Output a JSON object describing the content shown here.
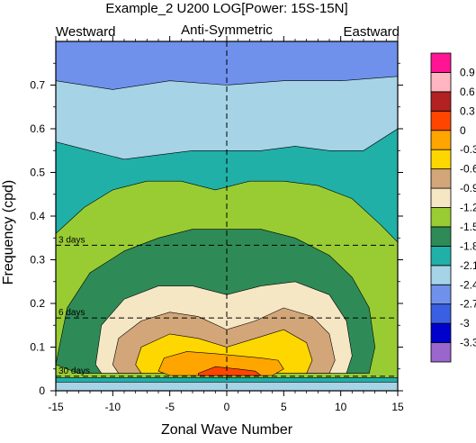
{
  "chart_data": {
    "type": "contour",
    "title": "Example_2 U200 LOG[Power: 15S-15N]",
    "subtitle": "Anti-Symmetric",
    "label_left": "Westward",
    "label_right": "Eastward",
    "xlabel": "Zonal Wave Number",
    "ylabel": "Frequency (cpd)",
    "xlim": [
      -15,
      15
    ],
    "ylim": [
      0,
      0.8
    ],
    "xticks": [
      -15,
      -10,
      -5,
      0,
      5,
      10,
      15
    ],
    "xtick_labels": [
      "-15",
      "-10",
      "-5",
      "0",
      "5",
      "10",
      "15"
    ],
    "yticks": [
      0,
      0.1,
      0.2,
      0.3,
      0.4,
      0.5,
      0.6,
      0.7
    ],
    "ytick_labels": [
      "0",
      "0.1",
      "0.2",
      "0.3",
      "0.4",
      "0.5",
      "0.6",
      "0.7"
    ],
    "period_lines": [
      {
        "freq": 0.0333,
        "label": "30 days"
      },
      {
        "freq": 0.1667,
        "label": "6 days"
      },
      {
        "freq": 0.3333,
        "label": "3 days"
      }
    ],
    "zero_line_x": 0,
    "colorbar": {
      "colors": [
        "#9966cc",
        "#0000cd",
        "#3a5fe3",
        "#6f91ec",
        "#a6d3e6",
        "#20b0a8",
        "#2e8b57",
        "#99cc33",
        "#f5e6c4",
        "#d2a679",
        "#ffd700",
        "#ffa500",
        "#ff4500",
        "#b22222",
        "#ffb6c1",
        "#ff1493"
      ],
      "labels": [
        "-3.3",
        "-3",
        "-2.7",
        "-2.4",
        "-2.1",
        "-1.8",
        "-1.5",
        "-1.2",
        "-0.9",
        "-0.6",
        "-0.3",
        "0",
        "0.3",
        "0.6",
        "0.9"
      ]
    },
    "contour_levels": [
      {
        "level": -2.7,
        "color": "#6f91ec",
        "region": [
          [
            -15,
            0.8
          ],
          [
            15,
            0.8
          ],
          [
            15,
            0
          ],
          [
            -15,
            0
          ]
        ]
      },
      {
        "level": -2.4,
        "color": "#a6d3e6",
        "region": [
          [
            -15,
            0.71
          ],
          [
            -10,
            0.69
          ],
          [
            -5,
            0.71
          ],
          [
            0,
            0.7
          ],
          [
            5,
            0.71
          ],
          [
            10,
            0.71
          ],
          [
            15,
            0.72
          ],
          [
            15,
            0
          ],
          [
            -15,
            0
          ]
        ]
      },
      {
        "level": -2.1,
        "color": "#20b0a8",
        "region": [
          [
            -15,
            0.57
          ],
          [
            -12,
            0.55
          ],
          [
            -9,
            0.53
          ],
          [
            -6,
            0.54
          ],
          [
            -3,
            0.55
          ],
          [
            0,
            0.55
          ],
          [
            3,
            0.55
          ],
          [
            6,
            0.56
          ],
          [
            9,
            0.55
          ],
          [
            12,
            0.55
          ],
          [
            15,
            0.6
          ],
          [
            15,
            0.02
          ],
          [
            -15,
            0.02
          ]
        ]
      },
      {
        "level": -1.8,
        "color": "#99cc33",
        "region": [
          [
            -15,
            0.36
          ],
          [
            -12.5,
            0.42
          ],
          [
            -10,
            0.46
          ],
          [
            -7,
            0.48
          ],
          [
            -4,
            0.48
          ],
          [
            -1,
            0.46
          ],
          [
            2,
            0.48
          ],
          [
            5,
            0.48
          ],
          [
            8,
            0.47
          ],
          [
            11,
            0.44
          ],
          [
            13.5,
            0.38
          ],
          [
            15,
            0.34
          ],
          [
            15,
            0.03
          ],
          [
            -15,
            0.03
          ]
        ]
      },
      {
        "level": -1.5,
        "color": "#2e8b57",
        "region": [
          [
            -15,
            0.06
          ],
          [
            -14,
            0.19
          ],
          [
            -12,
            0.27
          ],
          [
            -9,
            0.32
          ],
          [
            -6,
            0.35
          ],
          [
            -3,
            0.37
          ],
          [
            0,
            0.37
          ],
          [
            3,
            0.37
          ],
          [
            6,
            0.35
          ],
          [
            9,
            0.31
          ],
          [
            11,
            0.26
          ],
          [
            12.5,
            0.19
          ],
          [
            13,
            0.1
          ],
          [
            12.5,
            0.04
          ],
          [
            -13,
            0.04
          ]
        ]
      },
      {
        "level": -1.2,
        "color": "#f5e6c4",
        "region": [
          [
            -11.5,
            0.06
          ],
          [
            -11,
            0.15
          ],
          [
            -9,
            0.21
          ],
          [
            -6,
            0.24
          ],
          [
            -3,
            0.24
          ],
          [
            0,
            0.22
          ],
          [
            3,
            0.24
          ],
          [
            6,
            0.25
          ],
          [
            9,
            0.22
          ],
          [
            10.5,
            0.16
          ],
          [
            11,
            0.08
          ],
          [
            10.5,
            0.04
          ],
          [
            -11,
            0.04
          ]
        ]
      },
      {
        "level": -0.9,
        "color": "#d2a679",
        "region": [
          [
            -10,
            0.06
          ],
          [
            -9.5,
            0.12
          ],
          [
            -7.5,
            0.16
          ],
          [
            -5,
            0.18
          ],
          [
            -2.5,
            0.17
          ],
          [
            0,
            0.14
          ],
          [
            2.5,
            0.16
          ],
          [
            5,
            0.19
          ],
          [
            7.5,
            0.17
          ],
          [
            9,
            0.13
          ],
          [
            9.5,
            0.07
          ],
          [
            9,
            0.04
          ],
          [
            -9.5,
            0.04
          ]
        ]
      },
      {
        "level": -0.6,
        "color": "#ffd700",
        "region": [
          [
            -8,
            0.06
          ],
          [
            -7.5,
            0.1
          ],
          [
            -5,
            0.13
          ],
          [
            -2.5,
            0.12
          ],
          [
            0,
            0.1
          ],
          [
            2.5,
            0.12
          ],
          [
            5,
            0.14
          ],
          [
            7,
            0.11
          ],
          [
            7.5,
            0.07
          ],
          [
            7,
            0.04
          ],
          [
            -7.5,
            0.04
          ]
        ]
      },
      {
        "level": -0.3,
        "color": "#ffa500",
        "region": [
          [
            -6,
            0.045
          ],
          [
            -5.5,
            0.075
          ],
          [
            -3.5,
            0.09
          ],
          [
            -1,
            0.085
          ],
          [
            1,
            0.08
          ],
          [
            3,
            0.075
          ],
          [
            4.5,
            0.07
          ],
          [
            5,
            0.05
          ],
          [
            4,
            0.035
          ],
          [
            -5,
            0.035
          ]
        ]
      },
      {
        "level": 0.0,
        "color": "#ff4500",
        "region": [
          [
            -2.5,
            0.04
          ],
          [
            -1,
            0.055
          ],
          [
            1,
            0.05
          ],
          [
            2.5,
            0.045
          ],
          [
            3,
            0.035
          ],
          [
            -2.5,
            0.035
          ]
        ]
      }
    ]
  }
}
